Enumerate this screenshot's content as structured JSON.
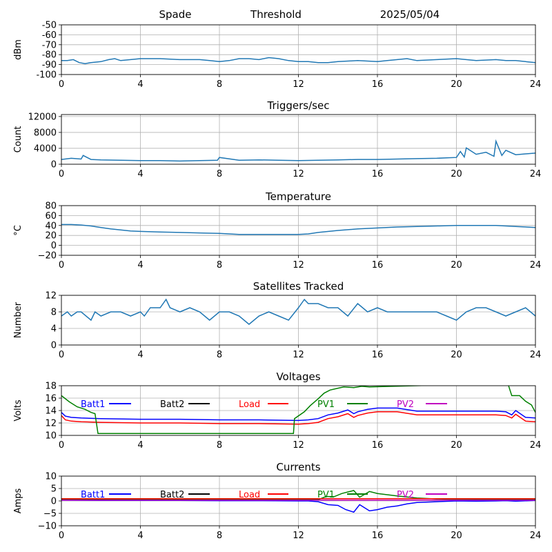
{
  "header": {
    "station": "Spade",
    "mode": "Threshold",
    "date": "2025/05/04"
  },
  "x_ticks": [
    "0",
    "4",
    "8",
    "12",
    "16",
    "20",
    "24"
  ],
  "xlim": [
    0,
    24
  ],
  "colors": {
    "trace": "#1f77b4",
    "Batt1": "#0000ff",
    "Batt2": "#000000",
    "Load": "#ff0000",
    "PV1": "#008000",
    "PV2": "#bf00bf",
    "grid": "#b0b0b0"
  },
  "chart_data": [
    {
      "type": "line",
      "key": "rssi",
      "title": "",
      "ylabel": "dBm",
      "ylim": [
        -100,
        -50
      ],
      "yticks": [
        "-50",
        "-60",
        "-70",
        "-80",
        "-90",
        "-100"
      ],
      "ytick_values": [
        -50,
        -60,
        -70,
        -80,
        -90,
        -100
      ],
      "series": [
        {
          "color": "#1f77b4",
          "x": [
            0,
            0.3,
            0.6,
            0.9,
            1.2,
            1.5,
            2,
            2.4,
            2.7,
            3,
            3.5,
            4,
            5,
            6,
            7,
            7.5,
            8,
            8.5,
            9,
            9.5,
            10,
            10.5,
            11,
            11.5,
            12,
            12.5,
            13,
            13.5,
            14,
            15,
            16,
            16.5,
            17,
            17.5,
            18,
            19,
            20,
            20.5,
            21,
            22,
            22.5,
            23,
            23.5,
            24
          ],
          "y": [
            -86,
            -86,
            -85,
            -88,
            -89,
            -88,
            -87,
            -85,
            -84,
            -86,
            -85,
            -84,
            -84,
            -85,
            -85,
            -86,
            -87,
            -86,
            -84,
            -84,
            -85,
            -83,
            -84,
            -86,
            -87,
            -87,
            -88,
            -88,
            -87,
            -86,
            -87,
            -86,
            -85,
            -84,
            -86,
            -85,
            -84,
            -85,
            -86,
            -85,
            -86,
            -86,
            -87,
            -88
          ]
        }
      ]
    },
    {
      "type": "line",
      "key": "triggers",
      "title": "Triggers/sec",
      "ylabel": "Count",
      "ylim": [
        0,
        12500
      ],
      "yticks": [
        "12000",
        "8000",
        "4000",
        "0"
      ],
      "ytick_values": [
        12000,
        8000,
        4000,
        0
      ],
      "series": [
        {
          "color": "#1f77b4",
          "x": [
            0,
            0.5,
            1,
            1.1,
            1.5,
            2,
            3,
            4,
            5,
            6,
            7,
            7.9,
            8,
            9,
            10,
            11,
            12,
            13,
            14,
            15,
            16,
            17,
            18,
            19,
            19.5,
            20,
            20.2,
            20.4,
            20.5,
            21,
            21.5,
            21.9,
            22,
            22.3,
            22.5,
            23,
            23.5,
            24
          ],
          "y": [
            1200,
            1500,
            1300,
            2200,
            1200,
            1100,
            1000,
            900,
            900,
            800,
            900,
            1000,
            1700,
            1000,
            1100,
            1000,
            900,
            1000,
            1100,
            1200,
            1200,
            1300,
            1400,
            1500,
            1600,
            1700,
            3200,
            1800,
            4100,
            2500,
            3000,
            2000,
            5800,
            2200,
            3500,
            2400,
            2600,
            2800
          ]
        }
      ]
    },
    {
      "type": "line",
      "key": "temperature",
      "title": "Temperature",
      "ylabel": "°C",
      "ylim": [
        -20,
        80
      ],
      "yticks": [
        "80",
        "60",
        "40",
        "20",
        "0",
        "−20"
      ],
      "ytick_values": [
        80,
        60,
        40,
        20,
        0,
        -20
      ],
      "series": [
        {
          "color": "#1f77b4",
          "x": [
            0,
            0.5,
            1,
            1.5,
            2,
            2.5,
            3,
            3.5,
            4,
            5,
            6,
            7,
            8,
            8.5,
            9,
            10,
            11,
            12,
            12.5,
            13,
            14,
            15,
            16,
            17,
            18,
            19,
            20,
            21,
            22,
            22.5,
            23,
            24
          ],
          "y": [
            42,
            42,
            41,
            39,
            36,
            33,
            31,
            29,
            28,
            27,
            26,
            25,
            24,
            23,
            22,
            22,
            22,
            22,
            23,
            26,
            30,
            33,
            35,
            37,
            38,
            39,
            40,
            40,
            40,
            39,
            38,
            36
          ]
        }
      ]
    },
    {
      "type": "line",
      "key": "satellites",
      "title": "Satellites Tracked",
      "ylabel": "Number",
      "ylim": [
        0,
        12
      ],
      "yticks": [
        "12",
        "8",
        "4",
        "0"
      ],
      "ytick_values": [
        12,
        8,
        4,
        0
      ],
      "series": [
        {
          "color": "#1f77b4",
          "x": [
            0,
            0.3,
            0.5,
            0.8,
            1,
            1.5,
            1.7,
            2,
            2.5,
            3,
            3.5,
            4,
            4.2,
            4.5,
            5,
            5.3,
            5.5,
            6,
            6.5,
            7,
            7.5,
            8,
            8.5,
            9,
            9.5,
            10,
            10.5,
            11,
            11.5,
            12,
            12.3,
            12.5,
            13,
            13.5,
            14,
            14.5,
            15,
            15.5,
            16,
            16.5,
            17,
            18,
            19,
            19.5,
            20,
            20.5,
            21,
            21.5,
            22,
            22.5,
            23,
            23.5,
            24
          ],
          "y": [
            7,
            8,
            7,
            8,
            8,
            6,
            8,
            7,
            8,
            8,
            7,
            8,
            7,
            9,
            9,
            11,
            9,
            8,
            9,
            8,
            6,
            8,
            8,
            7,
            5,
            7,
            8,
            7,
            6,
            9,
            11,
            10,
            10,
            9,
            9,
            7,
            10,
            8,
            9,
            8,
            8,
            8,
            8,
            7,
            6,
            8,
            9,
            9,
            8,
            7,
            8,
            9,
            7
          ]
        }
      ]
    },
    {
      "type": "line",
      "key": "voltages",
      "title": "Voltages",
      "ylabel": "Volts",
      "ylim": [
        10,
        18
      ],
      "yticks": [
        "18",
        "16",
        "14",
        "12",
        "10"
      ],
      "ytick_values": [
        18,
        16,
        14,
        12,
        10
      ],
      "legend": [
        "Batt1",
        "Batt2",
        "Load",
        "PV1",
        "PV2"
      ],
      "series": [
        {
          "name": "Batt1",
          "color": "#0000ff",
          "x": [
            0,
            0.2,
            0.5,
            1,
            2,
            4,
            6,
            8,
            10,
            12,
            12.5,
            13,
            13.5,
            14,
            14.5,
            14.8,
            15,
            15.5,
            16,
            17,
            18,
            19,
            20,
            21,
            22,
            22.5,
            22.8,
            23,
            23.5,
            24
          ],
          "y": [
            13.7,
            13.1,
            12.9,
            12.8,
            12.7,
            12.6,
            12.6,
            12.5,
            12.5,
            12.4,
            12.5,
            12.7,
            13.3,
            13.6,
            14.1,
            13.5,
            13.8,
            14.2,
            14.4,
            14.4,
            13.9,
            13.9,
            13.9,
            13.9,
            13.9,
            13.8,
            13.3,
            14,
            12.9,
            12.8
          ]
        },
        {
          "name": "Load",
          "color": "#ff0000",
          "x": [
            0,
            0.2,
            0.5,
            1,
            2,
            4,
            6,
            8,
            10,
            12,
            12.5,
            13,
            13.5,
            14,
            14.5,
            14.8,
            15,
            15.5,
            16,
            17,
            18,
            19,
            20,
            21,
            22,
            22.5,
            22.8,
            23,
            23.5,
            24
          ],
          "y": [
            13.2,
            12.5,
            12.3,
            12.2,
            12.1,
            12.0,
            12.0,
            11.9,
            11.9,
            11.8,
            11.9,
            12.1,
            12.7,
            13.0,
            13.5,
            12.9,
            13.2,
            13.6,
            13.8,
            13.8,
            13.3,
            13.3,
            13.3,
            13.3,
            13.3,
            13.2,
            12.8,
            13.4,
            12.3,
            12.2
          ]
        },
        {
          "name": "PV1",
          "color": "#008000",
          "x": [
            0,
            0.4,
            0.8,
            1.2,
            1.5,
            1.7,
            1.85,
            11.75,
            11.8,
            12.3,
            12.6,
            13,
            13.3,
            13.6,
            14,
            14.3,
            14.8,
            15.2,
            15.6,
            22.6,
            22.8,
            23.2,
            23.5,
            23.8,
            24
          ],
          "y": [
            16.4,
            15.4,
            14.6,
            14.2,
            13.7,
            13.5,
            10.3,
            10.3,
            12.7,
            13.8,
            14.8,
            15.9,
            16.8,
            17.3,
            17.6,
            17.8,
            17.7,
            17.9,
            17.8,
            18.4,
            16.4,
            16.4,
            15.5,
            14.9,
            13.7
          ]
        }
      ]
    },
    {
      "type": "line",
      "key": "currents",
      "title": "Currents",
      "ylabel": "Amps",
      "ylim": [
        -10,
        10
      ],
      "yticks": [
        "10",
        "5",
        "0",
        "−5",
        "−10"
      ],
      "ytick_values": [
        10,
        5,
        0,
        -5,
        -10
      ],
      "legend": [
        "Batt1",
        "Batt2",
        "Load",
        "PV1",
        "PV2"
      ],
      "series": [
        {
          "name": "PV1",
          "color": "#008000",
          "x": [
            0,
            2,
            4,
            6,
            8,
            10,
            12,
            12.5,
            13,
            13.4,
            13.8,
            14.2,
            14.8,
            15.1,
            15.6,
            16,
            17,
            18,
            19,
            20,
            21,
            22,
            23,
            24
          ],
          "y": [
            0.5,
            0.6,
            0.6,
            0.6,
            0.6,
            0.6,
            0.6,
            0.6,
            0.5,
            1.8,
            1.7,
            3.0,
            4.2,
            1.5,
            3.8,
            3.0,
            2.0,
            1.2,
            0.8,
            0.7,
            0.6,
            0.6,
            0.6,
            0.6
          ]
        },
        {
          "name": "Batt1",
          "color": "#0000ff",
          "x": [
            0,
            2,
            4,
            6,
            8,
            10,
            12,
            12.5,
            13,
            13.5,
            14,
            14.4,
            14.8,
            15.1,
            15.6,
            16,
            16.5,
            17,
            17.5,
            18,
            19,
            20,
            21,
            22,
            22.5,
            23,
            24
          ],
          "y": [
            0.3,
            0.2,
            0.2,
            0.2,
            0.1,
            0.1,
            0.0,
            0.0,
            -0.3,
            -1.5,
            -1.8,
            -3.5,
            -4.5,
            -1.5,
            -4.0,
            -3.5,
            -2.5,
            -2.0,
            -1.2,
            -0.6,
            -0.3,
            0.0,
            -0.1,
            0.0,
            0.1,
            -0.1,
            0.2
          ]
        },
        {
          "name": "Load",
          "color": "#ff0000",
          "x": [
            0,
            2,
            4,
            6,
            8,
            10,
            12,
            14,
            16,
            18,
            20,
            22,
            24
          ],
          "y": [
            0.9,
            0.9,
            0.9,
            0.9,
            0.9,
            0.9,
            0.9,
            0.9,
            0.9,
            0.9,
            0.9,
            0.9,
            0.9
          ]
        },
        {
          "name": "PV2",
          "color": "#bf00bf",
          "x": [
            0,
            2,
            4,
            6,
            8,
            10,
            12,
            14,
            16,
            18,
            20,
            22,
            24
          ],
          "y": [
            0.3,
            0.3,
            0.3,
            0.3,
            0.3,
            0.3,
            0.3,
            0.3,
            0.3,
            0.3,
            0.3,
            0.3,
            0.3
          ]
        }
      ]
    }
  ]
}
